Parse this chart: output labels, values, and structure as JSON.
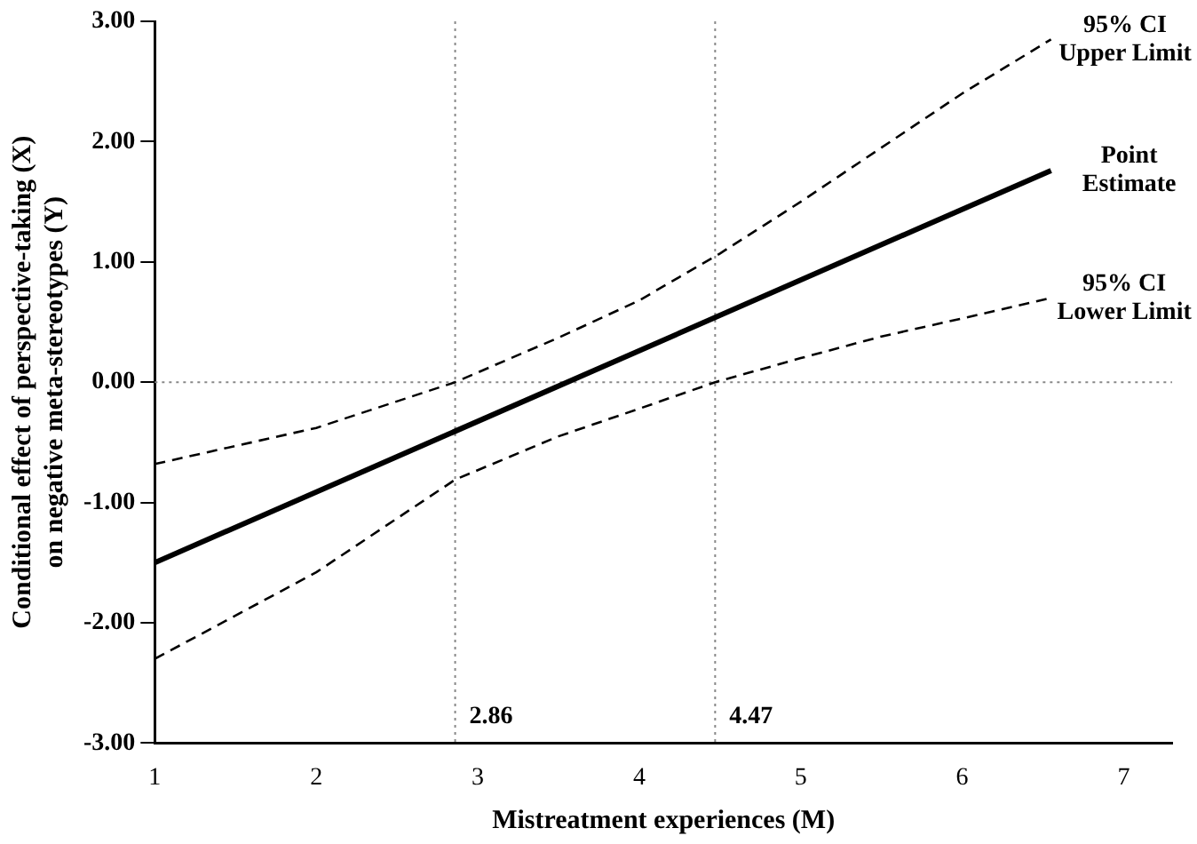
{
  "chart_data": {
    "type": "line",
    "xlabel": "Mistreatment experiences (M)",
    "ylabel": "Conditional effect of perspective-taking (X) on negative meta-stereotypes (Y)",
    "xlim": [
      1,
      7.3
    ],
    "xticks": [
      1,
      2,
      3,
      4,
      5,
      6,
      7
    ],
    "ylim": [
      -3,
      3
    ],
    "yticks": [
      {
        "value": -3,
        "label": "-3.00"
      },
      {
        "value": -2,
        "label": "-2.00"
      },
      {
        "value": -1,
        "label": "-1.00"
      },
      {
        "value": 0,
        "label": "0.00"
      },
      {
        "value": 1,
        "label": "1.00"
      },
      {
        "value": 2,
        "label": "2.00"
      },
      {
        "value": 3,
        "label": "3.00"
      }
    ],
    "series": [
      {
        "name": "95% CI Upper Limit",
        "color": "#000000",
        "line_style": "dashed",
        "x": [
          1,
          2,
          2.86,
          3.5,
          4,
          4.5,
          5,
          5.5,
          6,
          6.55
        ],
        "values": [
          -0.68,
          -0.38,
          0,
          0.37,
          0.68,
          1.07,
          1.5,
          1.95,
          2.4,
          2.85
        ]
      },
      {
        "name": "Point Estimate",
        "color": "#000000",
        "line_style": "solid",
        "x": [
          1,
          6.55
        ],
        "values": [
          -1.5,
          1.76
        ]
      },
      {
        "name": "95% CI Lower Limit",
        "color": "#000000",
        "line_style": "dashed",
        "x": [
          1,
          2,
          2.86,
          3.5,
          4,
          4.47,
          5,
          5.5,
          6,
          6.55
        ],
        "values": [
          -2.3,
          -1.58,
          -0.81,
          -0.45,
          -0.22,
          0,
          0.2,
          0.38,
          0.53,
          0.7
        ]
      }
    ],
    "ref_lines": [
      {
        "axis": "x",
        "value": 2.86,
        "label": "2.86",
        "line_style": "dotted",
        "color": "#888888"
      },
      {
        "axis": "x",
        "value": 4.47,
        "label": "4.47",
        "line_style": "dotted",
        "color": "#888888"
      },
      {
        "axis": "y",
        "value": 0,
        "line_style": "dotted",
        "color": "#888888"
      }
    ],
    "grid": false,
    "legend": false,
    "marker": "none"
  }
}
